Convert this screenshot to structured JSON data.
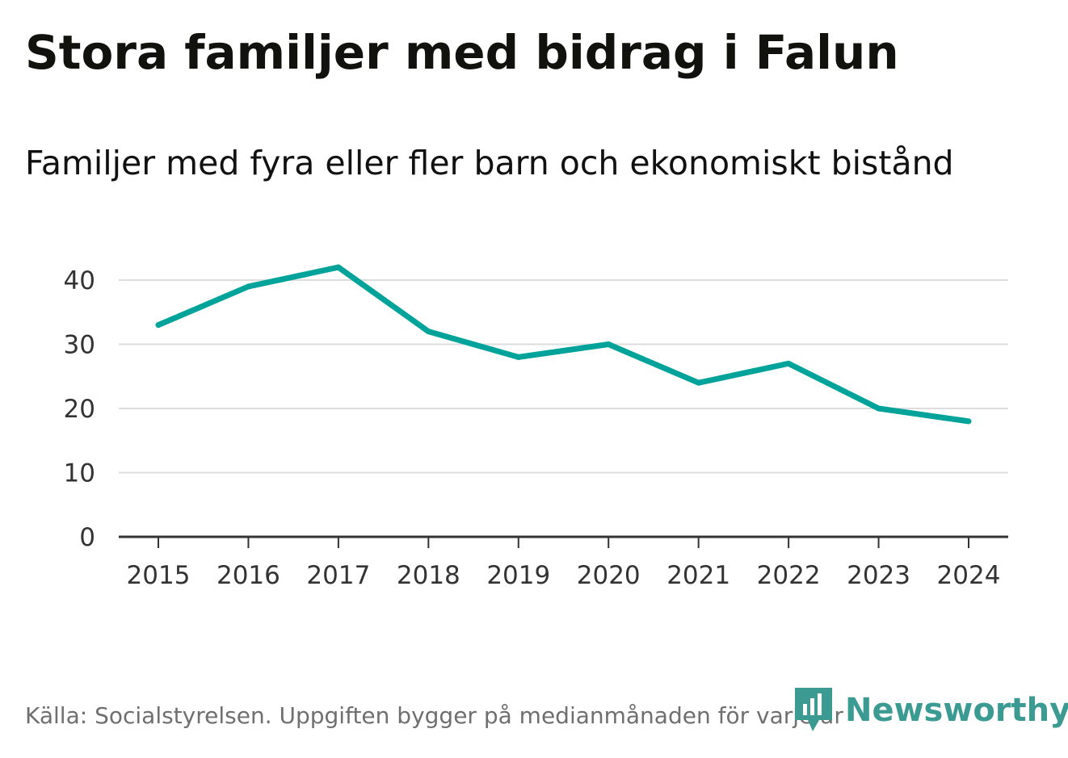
{
  "header": {
    "title": "Stora familjer med bidrag i Falun",
    "subtitle": "Familjer med fyra eller fler barn och ekonomiskt bistånd"
  },
  "footer": {
    "source": "Källa: Socialstyrelsen. Uppgiften bygger på medianmånaden för varje år",
    "brand": "Newsworthy"
  },
  "colors": {
    "line": "#00a39a",
    "grid": "#dddddd",
    "axis": "#333333",
    "brand": "#3b9b93"
  },
  "chart_data": {
    "type": "line",
    "title": "Stora familjer med bidrag i Falun",
    "subtitle": "Familjer med fyra eller fler barn och ekonomiskt bistånd",
    "xlabel": "",
    "ylabel": "",
    "categories": [
      "2015",
      "2016",
      "2017",
      "2018",
      "2019",
      "2020",
      "2021",
      "2022",
      "2023",
      "2024"
    ],
    "series": [
      {
        "name": "Familjer med fyra eller fler barn och ekonomiskt bistånd",
        "values": [
          33,
          39,
          42,
          32,
          28,
          30,
          24,
          27,
          20,
          18
        ]
      }
    ],
    "yticks": [
      0,
      10,
      20,
      30,
      40
    ],
    "ytick_labels": [
      "0",
      "10",
      "20",
      "30",
      "40"
    ],
    "ylim": [
      0,
      45
    ],
    "grid": true,
    "legend": "none"
  }
}
